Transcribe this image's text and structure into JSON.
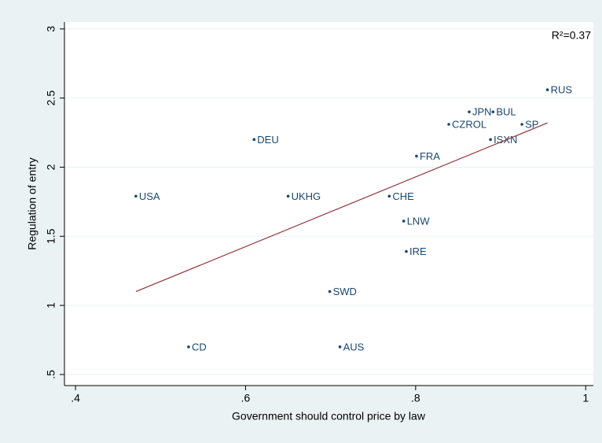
{
  "chart_data": {
    "type": "scatter",
    "x_label": "Government should control price by law",
    "y_label": "Regulation of entry",
    "annotation": "R²=0.37",
    "labels": [
      "USA",
      "CD",
      "DEU",
      "UKHG",
      "SWD",
      "AUS",
      "CHE",
      "LNW",
      "IRE",
      "FRA",
      "CZROL",
      "JPN",
      "BUL",
      "ISXN",
      "SP",
      "RUS"
    ],
    "x": [
      0.471,
      0.533,
      0.61,
      0.65,
      0.699,
      0.711,
      0.769,
      0.786,
      0.789,
      0.801,
      0.839,
      0.863,
      0.891,
      0.888,
      0.925,
      0.955
    ],
    "values": [
      1.79,
      0.7,
      2.2,
      1.79,
      1.1,
      0.7,
      1.79,
      1.61,
      1.39,
      2.08,
      2.31,
      2.4,
      2.4,
      2.2,
      2.31,
      2.56
    ],
    "color": "#1a476f",
    "fit": {
      "x": [
        0.471,
        0.955
      ],
      "y": [
        1.1,
        2.32
      ],
      "color": "#90353b"
    },
    "xlim": [
      0.387,
      1.009
    ],
    "ylim": [
      0.42,
      3.05
    ],
    "xticks": [
      {
        "value": 0.4,
        "label": ".4"
      },
      {
        "value": 0.6,
        "label": ".6"
      },
      {
        "value": 0.8,
        "label": ".8"
      },
      1
    ],
    "yticks": [
      {
        "value": 0.5,
        "label": ".5"
      },
      1,
      1.5,
      2,
      2.5,
      3
    ],
    "grid": true
  }
}
